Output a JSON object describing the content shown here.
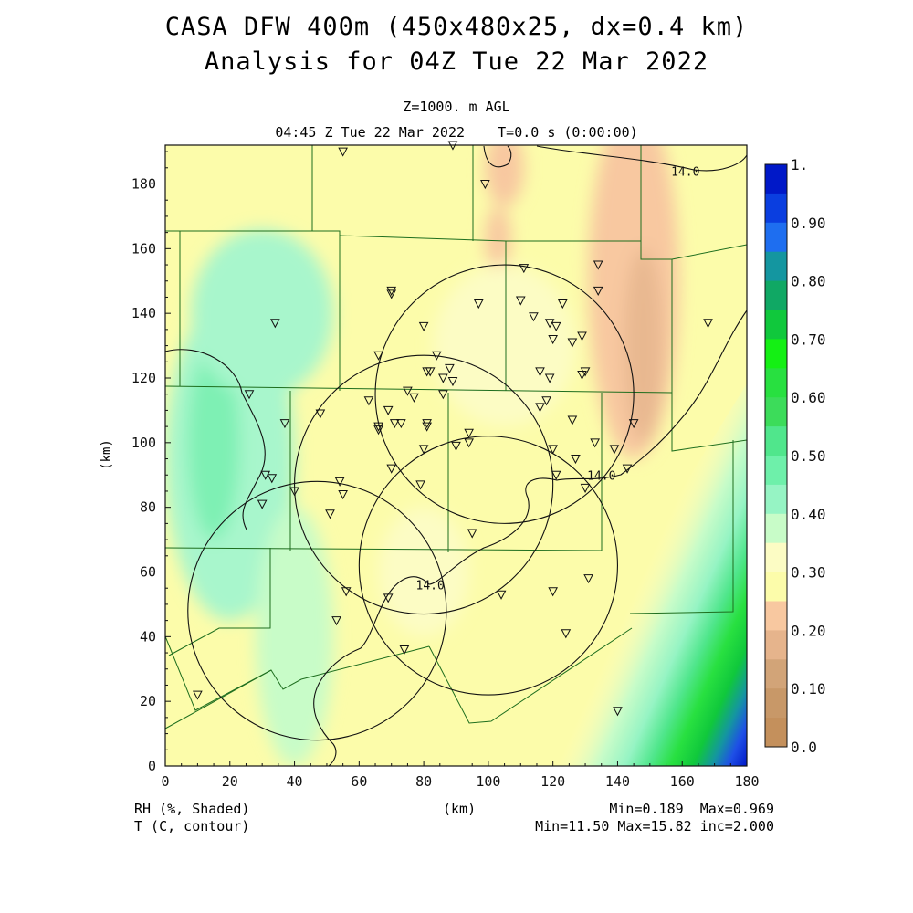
{
  "header": {
    "title_line1": "CASA DFW 400m (450x480x25, dx=0.4 km)",
    "title_line2": "Analysis for 04Z Tue 22 Mar 2022",
    "level": "Z=1000. m AGL",
    "valid_time": "04:45 Z Tue 22 Mar 2022    T=0.0 s (0:00:00)"
  },
  "axes": {
    "x_label": "(km)",
    "y_label": "(km)",
    "x_ticks": [
      "0",
      "20",
      "40",
      "60",
      "80",
      "100",
      "120",
      "140",
      "160",
      "180"
    ],
    "y_ticks": [
      "0",
      "20",
      "40",
      "60",
      "80",
      "100",
      "120",
      "140",
      "160",
      "180"
    ],
    "x_range": [
      0,
      180
    ],
    "y_range": [
      0,
      192
    ]
  },
  "colorbar": {
    "labels": [
      "1.",
      "0.90",
      "0.80",
      "0.70",
      "0.60",
      "0.50",
      "0.40",
      "0.30",
      "0.20",
      "0.10",
      "0.0"
    ],
    "colors_top_to_bottom": [
      "#0018c8",
      "#0a3ee0",
      "#1e6ef0",
      "#1496a0",
      "#10a864",
      "#10c83c",
      "#14f014",
      "#28e040",
      "#3cdc5a",
      "#50e68c",
      "#6ef0aa",
      "#96f4c4",
      "#c8fcc8",
      "#fcfcc4",
      "#fcfcaa",
      "#f8c8a0",
      "#e6b48c",
      "#d2a478",
      "#c89868",
      "#c4905c"
    ]
  },
  "footer": {
    "left_line1": "RH (%, Shaded)",
    "left_line2": "T (C, contour)",
    "center": "(km)",
    "right_line1": "Min=0.189  Max=0.969",
    "right_line2": "Min=11.50 Max=15.82 inc=2.000"
  },
  "contour_labels": [
    {
      "text": "14.0",
      "x": 161,
      "y": 184
    },
    {
      "text": "14.0",
      "x": 135,
      "y": 90
    },
    {
      "text": "14.0",
      "x": 82,
      "y": 56
    }
  ],
  "radar_rings": [
    {
      "center_x": 105,
      "center_y": 115,
      "radius_km": 40
    },
    {
      "center_x": 80,
      "center_y": 87,
      "radius_km": 40
    },
    {
      "center_x": 100,
      "center_y": 62,
      "radius_km": 40
    },
    {
      "center_x": 47,
      "center_y": 48,
      "radius_km": 40
    }
  ],
  "stations_km": [
    [
      55,
      190
    ],
    [
      89,
      192
    ],
    [
      99,
      180
    ],
    [
      70,
      147
    ],
    [
      70,
      146
    ],
    [
      34,
      137
    ],
    [
      111,
      154
    ],
    [
      134,
      155
    ],
    [
      134,
      147
    ],
    [
      97,
      143
    ],
    [
      110,
      144
    ],
    [
      114,
      139
    ],
    [
      123,
      143
    ],
    [
      80,
      136
    ],
    [
      119,
      137
    ],
    [
      121,
      136
    ],
    [
      120,
      132
    ],
    [
      126,
      131
    ],
    [
      129,
      133
    ],
    [
      66,
      127
    ],
    [
      84,
      127
    ],
    [
      81,
      122
    ],
    [
      82,
      122
    ],
    [
      88,
      123
    ],
    [
      86,
      120
    ],
    [
      89,
      119
    ],
    [
      116,
      122
    ],
    [
      130,
      122
    ],
    [
      129,
      121
    ],
    [
      119,
      120
    ],
    [
      63,
      113
    ],
    [
      77,
      114
    ],
    [
      75,
      116
    ],
    [
      86,
      115
    ],
    [
      118,
      113
    ],
    [
      116,
      111
    ],
    [
      26,
      115
    ],
    [
      69,
      110
    ],
    [
      48,
      109
    ],
    [
      37,
      106
    ],
    [
      66,
      105
    ],
    [
      66,
      104
    ],
    [
      71,
      106
    ],
    [
      73,
      106
    ],
    [
      81,
      106
    ],
    [
      81,
      105
    ],
    [
      126,
      107
    ],
    [
      145,
      106
    ],
    [
      94,
      103
    ],
    [
      94,
      100
    ],
    [
      90,
      99
    ],
    [
      80,
      98
    ],
    [
      120,
      98
    ],
    [
      133,
      100
    ],
    [
      139,
      98
    ],
    [
      70,
      92
    ],
    [
      127,
      95
    ],
    [
      143,
      92
    ],
    [
      121,
      90
    ],
    [
      31,
      90
    ],
    [
      33,
      89
    ],
    [
      54,
      88
    ],
    [
      30,
      81
    ],
    [
      55,
      84
    ],
    [
      40,
      85
    ],
    [
      130,
      86
    ],
    [
      79,
      87
    ],
    [
      51,
      78
    ],
    [
      95,
      72
    ],
    [
      131,
      58
    ],
    [
      56,
      54
    ],
    [
      69,
      52
    ],
    [
      104,
      53
    ],
    [
      120,
      54
    ],
    [
      53,
      45
    ],
    [
      124,
      41
    ],
    [
      74,
      36
    ],
    [
      10,
      22
    ],
    [
      140,
      17
    ],
    [
      168,
      137
    ]
  ],
  "field_blobs": [
    {
      "cx": 145,
      "cy": 150,
      "rx": 14,
      "ry": 55,
      "color": "#f8c8a0"
    },
    {
      "cx": 148,
      "cy": 130,
      "rx": 6,
      "ry": 30,
      "color": "#e8b890"
    },
    {
      "cx": 105,
      "cy": 185,
      "rx": 6,
      "ry": 12,
      "color": "#f8c8a0"
    },
    {
      "cx": 103,
      "cy": 163,
      "rx": 4,
      "ry": 10,
      "color": "#f8c8a0"
    },
    {
      "cx": 105,
      "cy": 130,
      "rx": 22,
      "ry": 25,
      "color": "#fcfcc4"
    },
    {
      "cx": 80,
      "cy": 60,
      "rx": 14,
      "ry": 20,
      "color": "#fcfcc4"
    },
    {
      "cx": 20,
      "cy": 95,
      "rx": 20,
      "ry": 50,
      "color": "#a8f6cc"
    },
    {
      "cx": 15,
      "cy": 100,
      "rx": 8,
      "ry": 30,
      "color": "#7ef0b4"
    },
    {
      "cx": 30,
      "cy": 140,
      "rx": 22,
      "ry": 26,
      "color": "#a8f6cc"
    },
    {
      "cx": 40,
      "cy": 40,
      "rx": 12,
      "ry": 40,
      "color": "#c8fcc8"
    }
  ]
}
